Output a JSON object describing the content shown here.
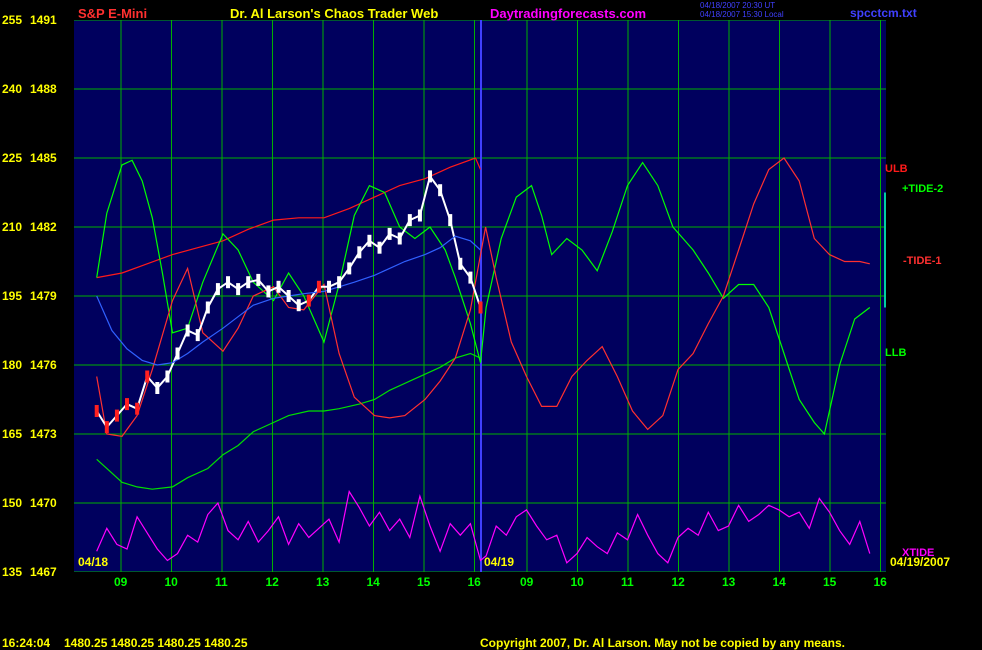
{
  "header": {
    "symbol": "S&P E-Mini",
    "title": "Dr. Al Larson's Chaos Trader Web",
    "site": "Daytradingforecasts.com",
    "timestamp_line1": "04/18/2007 20:30 UT",
    "timestamp_line2": "04/18/2007 15:30 Local",
    "file": "spcctcm.txt"
  },
  "footer": {
    "time": "16:24:04",
    "quotes": "1480.25 1480.25 1480.25 1480.25",
    "copyright": "Copyright 2007, Dr. Al Larson. May not be copied by any means."
  },
  "colors": {
    "background": "#00005e",
    "grid": "#00b000",
    "axis_text": "#ffff00",
    "hour_label": "#00ff00",
    "ulb": "#ff1a1a",
    "llb": "#00e000",
    "tide_plus": "#00ff00",
    "tide_minus": "#ff3030",
    "xtide": "#ff00ff",
    "price": "#ffffff",
    "ma": "#3060ff",
    "divider": "#4040ff"
  },
  "chart_data": {
    "type": "line",
    "y_left_labels": [
      "255",
      "240",
      "225",
      "210",
      "195",
      "180",
      "165",
      "150",
      "135"
    ],
    "y_right_labels": [
      "1491",
      "1488",
      "1485",
      "1482",
      "1479",
      "1476",
      "1473",
      "1470",
      "1467"
    ],
    "ylim_price": [
      1467,
      1491
    ],
    "ylim_index": [
      135,
      255
    ],
    "x_hours": [
      "09",
      "10",
      "11",
      "12",
      "13",
      "14",
      "15",
      "16",
      "09",
      "10",
      "11",
      "12",
      "13",
      "14",
      "15",
      "16"
    ],
    "date_labels": [
      "04/18",
      "04/19",
      "04/19/2007"
    ],
    "series_labels": [
      {
        "label": "ULB",
        "value": 1484.5,
        "color": "#ff1a1a"
      },
      {
        "label": "+TIDE-2",
        "value": 1483.6,
        "color": "#00ff00"
      },
      {
        "label": "-TIDE-1",
        "value": 1480.5,
        "color": "#ff3030"
      },
      {
        "label": "LLB",
        "value": 1476.5,
        "color": "#00ff00"
      },
      {
        "label": "XTIDE",
        "value": 1467.8,
        "color": "#ff00ff"
      }
    ],
    "series": [
      {
        "name": "ULB",
        "color": "#ff1a1a",
        "x": [
          8.5,
          9.0,
          9.5,
          10.0,
          10.5,
          11.0,
          11.5,
          12.0,
          12.5,
          13.0,
          13.5,
          14.0,
          14.5,
          15.0,
          15.5,
          16.0,
          16.1
        ],
        "y": [
          1479.8,
          1480.0,
          1480.4,
          1480.8,
          1481.1,
          1481.4,
          1481.9,
          1482.3,
          1482.4,
          1482.4,
          1482.8,
          1483.3,
          1483.8,
          1484.1,
          1484.6,
          1485.0,
          1484.5
        ]
      },
      {
        "name": "LLB",
        "color": "#00e000",
        "x": [
          8.5,
          8.8,
          9.0,
          9.3,
          9.6,
          10.0,
          10.3,
          10.7,
          11.0,
          11.3,
          11.6,
          12.0,
          12.3,
          12.7,
          13.0,
          13.3,
          13.7,
          14.0,
          14.3,
          14.7,
          15.0,
          15.3,
          15.6,
          15.9,
          16.1
        ],
        "y": [
          1471.9,
          1471.3,
          1470.9,
          1470.7,
          1470.6,
          1470.7,
          1471.1,
          1471.5,
          1472.1,
          1472.5,
          1473.1,
          1473.5,
          1473.8,
          1474.0,
          1474.0,
          1474.1,
          1474.3,
          1474.5,
          1474.9,
          1475.3,
          1475.6,
          1475.9,
          1476.3,
          1476.5,
          1476.3
        ]
      },
      {
        "name": "+TIDE-2",
        "color": "#00ff00",
        "x": [
          8.5,
          8.7,
          9.0,
          9.2,
          9.4,
          9.6,
          9.8,
          10.0,
          10.3,
          10.6,
          11.0,
          11.3,
          11.6,
          12.0,
          12.3,
          12.6,
          13.0,
          13.3,
          13.6,
          13.9,
          14.2,
          14.5,
          14.8,
          15.1,
          15.4,
          15.6,
          15.9,
          16.1,
          16.3,
          16.6,
          16.9,
          17.2,
          17.4,
          17.6,
          17.9,
          18.2,
          18.5,
          18.8,
          19.1,
          19.4,
          19.7,
          20.0,
          20.4,
          20.7,
          21.0,
          21.3,
          21.6,
          21.9,
          22.2,
          22.5,
          22.8,
          23.0,
          23.3,
          23.6,
          23.9
        ],
        "y": [
          1479.8,
          1482.6,
          1484.7,
          1484.9,
          1484.0,
          1482.4,
          1480.0,
          1477.4,
          1477.6,
          1479.6,
          1481.7,
          1481.0,
          1479.6,
          1478.8,
          1480.0,
          1479.0,
          1477.0,
          1479.5,
          1482.5,
          1483.8,
          1483.5,
          1482.0,
          1481.5,
          1482.0,
          1481.0,
          1479.8,
          1477.8,
          1476.1,
          1478.5,
          1481.5,
          1483.3,
          1483.8,
          1482.5,
          1480.8,
          1481.5,
          1481.0,
          1480.1,
          1481.8,
          1483.8,
          1484.8,
          1483.8,
          1482.0,
          1481.0,
          1480.0,
          1478.9,
          1479.5,
          1479.5,
          1478.5,
          1476.5,
          1474.5,
          1473.5,
          1473.0,
          1476.0,
          1478.0,
          1478.5
        ]
      },
      {
        "name": "-TIDE-1",
        "color": "#ff3030",
        "x": [
          8.5,
          8.7,
          9.0,
          9.3,
          9.6,
          10.0,
          10.3,
          10.6,
          11.0,
          11.3,
          11.6,
          12.0,
          12.3,
          12.6,
          13.0,
          13.3,
          13.6,
          14.0,
          14.3,
          14.6,
          15.0,
          15.3,
          15.6,
          15.9,
          16.2,
          16.5,
          16.8,
          17.1,
          17.4,
          17.7,
          18.0,
          18.3,
          18.6,
          18.9,
          19.2,
          19.5,
          19.8,
          20.1,
          20.4,
          20.7,
          21.0,
          21.3,
          21.6,
          21.9,
          22.2,
          22.5,
          22.8,
          23.1,
          23.4,
          23.7,
          23.9
        ],
        "y": [
          1475.5,
          1473.0,
          1472.9,
          1473.8,
          1475.8,
          1478.8,
          1480.2,
          1477.4,
          1476.6,
          1477.6,
          1479.0,
          1479.4,
          1478.5,
          1478.4,
          1479.5,
          1476.5,
          1474.6,
          1473.8,
          1473.7,
          1473.8,
          1474.5,
          1475.3,
          1476.3,
          1478.4,
          1482.0,
          1479.8,
          1477.0,
          1475.5,
          1474.2,
          1474.2,
          1475.5,
          1476.2,
          1476.8,
          1475.5,
          1474.0,
          1473.2,
          1473.8,
          1475.8,
          1476.5,
          1477.8,
          1479.0,
          1481.0,
          1483.0,
          1484.5,
          1485.0,
          1484.0,
          1481.5,
          1480.8,
          1480.5,
          1480.5,
          1480.4
        ]
      },
      {
        "name": "XTIDE",
        "color": "#ff00ff",
        "x": [
          8.5,
          8.7,
          8.9,
          9.1,
          9.3,
          9.5,
          9.7,
          9.9,
          10.1,
          10.3,
          10.5,
          10.7,
          10.9,
          11.1,
          11.3,
          11.5,
          11.7,
          11.9,
          12.1,
          12.3,
          12.5,
          12.7,
          12.9,
          13.1,
          13.3,
          13.5,
          13.7,
          13.9,
          14.1,
          14.3,
          14.5,
          14.7,
          14.9,
          15.1,
          15.3,
          15.5,
          15.7,
          15.9,
          16.1,
          16.3,
          16.5,
          16.7,
          16.9,
          17.1,
          17.3,
          17.5,
          17.7,
          17.9,
          18.1,
          18.3,
          18.5,
          18.7,
          18.9,
          19.1,
          19.3,
          19.5,
          19.7,
          19.9,
          20.1,
          20.3,
          20.5,
          20.7,
          20.9,
          21.1,
          21.3,
          21.5,
          21.7,
          21.9,
          22.1,
          22.3,
          22.5,
          22.7,
          22.9,
          23.1,
          23.3,
          23.5,
          23.7,
          23.9
        ],
        "y": [
          1467.9,
          1468.9,
          1468.2,
          1468.0,
          1469.4,
          1468.7,
          1468.0,
          1467.5,
          1467.8,
          1468.6,
          1468.3,
          1469.5,
          1470.0,
          1468.8,
          1468.4,
          1469.2,
          1468.3,
          1468.8,
          1469.4,
          1468.2,
          1469.1,
          1468.5,
          1468.9,
          1469.3,
          1468.3,
          1470.5,
          1469.8,
          1469.0,
          1469.6,
          1468.8,
          1469.3,
          1468.5,
          1470.3,
          1469.0,
          1467.9,
          1469.1,
          1468.6,
          1469.1,
          1467.5,
          1467.7,
          1469.0,
          1468.6,
          1469.4,
          1469.7,
          1469.0,
          1468.4,
          1468.6,
          1467.4,
          1467.8,
          1468.5,
          1468.1,
          1467.8,
          1468.7,
          1468.4,
          1469.5,
          1468.6,
          1467.8,
          1467.4,
          1468.5,
          1468.9,
          1468.6,
          1469.6,
          1468.8,
          1469.0,
          1469.9,
          1469.2,
          1469.5,
          1469.9,
          1469.7,
          1469.4,
          1469.6,
          1468.9,
          1470.2,
          1469.6,
          1468.8,
          1468.2,
          1469.2,
          1467.8
        ]
      },
      {
        "name": "Price",
        "color": "#ffffff",
        "x": [
          8.5,
          8.7,
          8.9,
          9.1,
          9.3,
          9.5,
          9.7,
          9.9,
          10.1,
          10.3,
          10.5,
          10.7,
          10.9,
          11.1,
          11.3,
          11.5,
          11.7,
          11.9,
          12.1,
          12.3,
          12.5,
          12.7,
          12.9,
          13.1,
          13.3,
          13.5,
          13.7,
          13.9,
          14.1,
          14.3,
          14.5,
          14.7,
          14.9,
          15.1,
          15.3,
          15.5,
          15.7,
          15.9,
          16.1
        ],
        "y": [
          1474.0,
          1473.3,
          1473.8,
          1474.3,
          1474.1,
          1475.5,
          1475.0,
          1475.5,
          1476.5,
          1477.5,
          1477.3,
          1478.5,
          1479.3,
          1479.6,
          1479.3,
          1479.6,
          1479.7,
          1479.2,
          1479.4,
          1479.0,
          1478.6,
          1478.8,
          1479.4,
          1479.4,
          1479.6,
          1480.2,
          1480.9,
          1481.4,
          1481.1,
          1481.7,
          1481.5,
          1482.3,
          1482.5,
          1484.2,
          1483.6,
          1482.3,
          1480.4,
          1479.8,
          1478.5
        ]
      },
      {
        "name": "MA",
        "color": "#3060ff",
        "x": [
          8.5,
          8.8,
          9.1,
          9.4,
          9.7,
          10.0,
          10.3,
          10.6,
          11.0,
          11.3,
          11.6,
          12.0,
          12.3,
          12.6,
          13.0,
          13.3,
          13.6,
          14.0,
          14.3,
          14.6,
          15.0,
          15.3,
          15.6,
          15.9,
          16.1
        ],
        "y": [
          1479.0,
          1477.5,
          1476.7,
          1476.2,
          1476.0,
          1476.1,
          1476.5,
          1477.0,
          1477.6,
          1478.1,
          1478.6,
          1478.9,
          1479.0,
          1479.1,
          1479.2,
          1479.4,
          1479.6,
          1479.9,
          1480.2,
          1480.5,
          1480.8,
          1481.1,
          1481.6,
          1481.4,
          1481.0
        ]
      }
    ]
  }
}
